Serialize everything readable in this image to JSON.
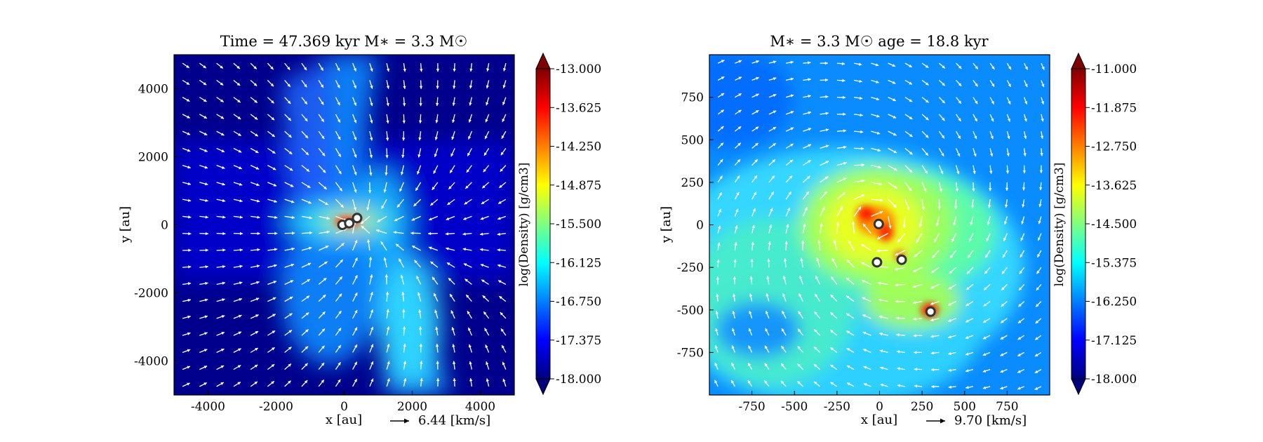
{
  "chart_data": [
    {
      "type": "heatmap",
      "title": "Time = 47.369 kyr    M∗ = 3.3 M☉",
      "xlabel": "x [au]",
      "ylabel": "y [au]",
      "xlim": [
        -5000,
        5000
      ],
      "ylim": [
        -5000,
        5000
      ],
      "xticks": [
        -4000,
        -2000,
        0,
        2000,
        4000
      ],
      "yticks": [
        -4000,
        -2000,
        0,
        2000,
        4000
      ],
      "grid": false,
      "colorbar": {
        "label": "log(Density) [g/cm3]",
        "min": -18.0,
        "max": -13.0,
        "ticks": [
          "-13.000",
          "-13.625",
          "-14.250",
          "-14.875",
          "-15.500",
          "-16.125",
          "-16.750",
          "-17.375",
          "-18.000"
        ]
      },
      "velocity_key": {
        "label": "6.44 [km/s]"
      },
      "sinks": [
        {
          "x": -50,
          "y": 0
        },
        {
          "x": 150,
          "y": 50
        },
        {
          "x": 380,
          "y": 200
        }
      ]
    },
    {
      "type": "heatmap",
      "title": "M∗ = 3.3 M☉        age = 18.8 kyr",
      "xlabel": "x [au]",
      "ylabel": "y [au]",
      "xlim": [
        -1000,
        1000
      ],
      "ylim": [
        -1000,
        1000
      ],
      "xticks": [
        -750,
        -500,
        -250,
        0,
        250,
        500,
        750
      ],
      "yticks": [
        750,
        500,
        250,
        0,
        -250,
        -500,
        -750
      ],
      "grid": false,
      "colorbar": {
        "label": "log(Density) [g/cm3]",
        "min": -18.0,
        "max": -11.0,
        "ticks": [
          "-11.000",
          "-11.875",
          "-12.750",
          "-13.625",
          "-14.500",
          "-15.375",
          "-16.250",
          "-17.125",
          "-18.000"
        ]
      },
      "velocity_key": {
        "label": "9.70 [km/s]"
      },
      "sinks": [
        {
          "x": -5,
          "y": 5
        },
        {
          "x": -15,
          "y": -220
        },
        {
          "x": 130,
          "y": -205
        },
        {
          "x": 300,
          "y": -510
        }
      ]
    }
  ]
}
